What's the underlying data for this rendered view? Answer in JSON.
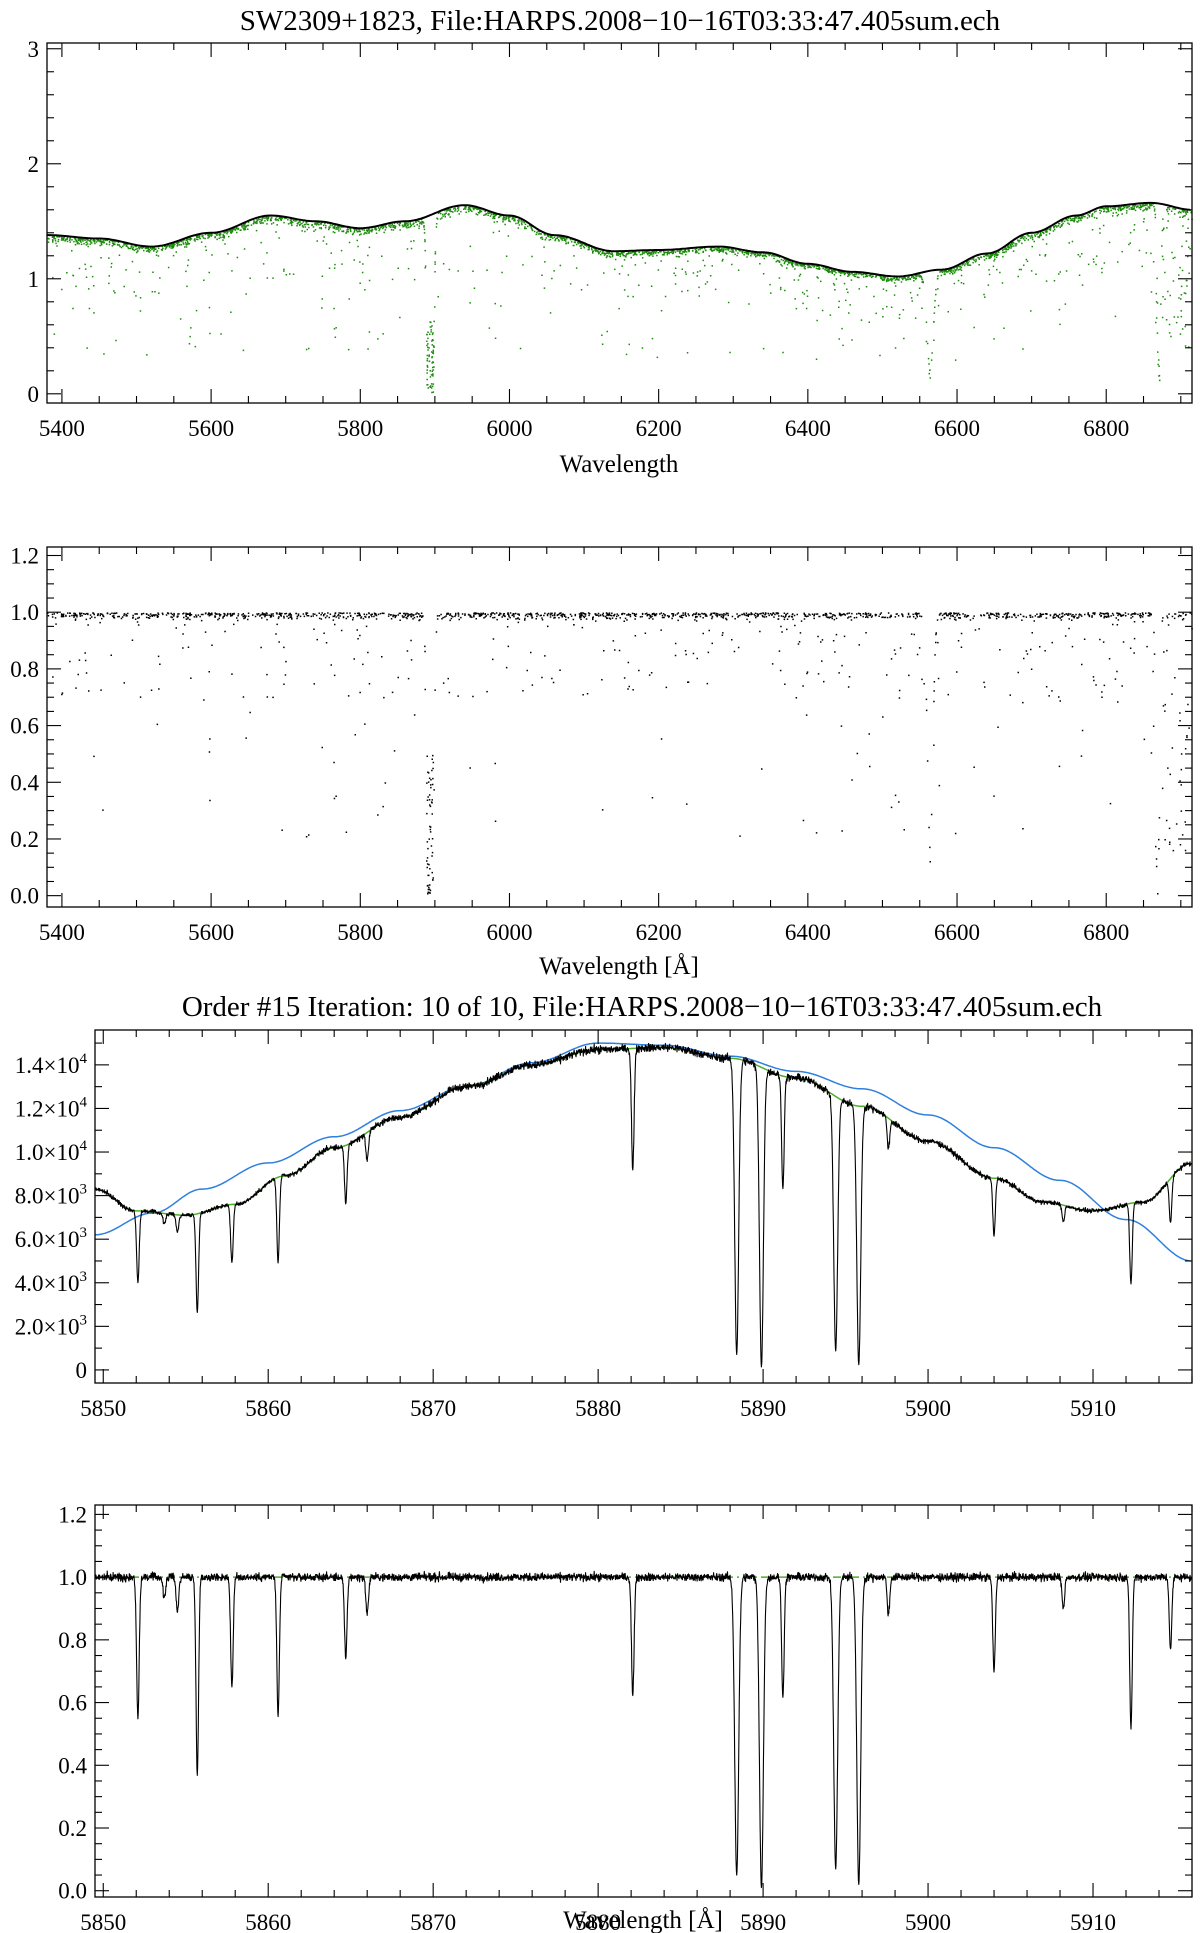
{
  "colors": {
    "background": "#ffffff",
    "axes": "#000000",
    "raw_spectrum": "#1a8c0a",
    "continuum_fit": "#000000",
    "normalized": "#000000",
    "blaze": "#2f7fe0",
    "model": "#4caf2a",
    "unity_line": "#4caf2a"
  },
  "chart_data": [
    {
      "type": "scatter",
      "title": "SW2309+1823, File:HARPS.2008−10−16T03:33:47.405sum.ech",
      "xlabel": "Wavelength",
      "ylabel": "",
      "xlim": [
        5380,
        6915
      ],
      "ylim": [
        -0.08,
        3.05
      ],
      "x_ticks": [
        5400,
        5600,
        5800,
        6000,
        6200,
        6400,
        6600,
        6800
      ],
      "x_tick_labels": [
        "5400",
        "5600",
        "5800",
        "6000",
        "6200",
        "6400",
        "6600",
        "6800"
      ],
      "y_ticks": [
        0,
        1,
        2,
        3
      ],
      "y_tick_labels": [
        "0",
        "1",
        "2",
        "3"
      ],
      "grid": false,
      "series": [
        {
          "color": "#1a8c0a",
          "style": "dots"
        },
        {
          "color": "#000000",
          "style": "line",
          "x": [
            5380,
            5450,
            5520,
            5600,
            5680,
            5740,
            5800,
            5860,
            5940,
            6000,
            6060,
            6140,
            6200,
            6280,
            6340,
            6400,
            6460,
            6520,
            6580,
            6640,
            6700,
            6760,
            6800,
            6860,
            6915
          ],
          "y": [
            1.38,
            1.35,
            1.28,
            1.4,
            1.55,
            1.5,
            1.44,
            1.5,
            1.64,
            1.55,
            1.38,
            1.24,
            1.25,
            1.28,
            1.23,
            1.13,
            1.06,
            1.02,
            1.08,
            1.22,
            1.4,
            1.55,
            1.63,
            1.66,
            1.6
          ]
        }
      ],
      "absorption_lines": [
        {
          "x": 5890,
          "depth": 0.95
        },
        {
          "x": 5896,
          "depth": 0.9
        },
        {
          "x": 6563,
          "depth": 0.8
        },
        {
          "x": 6870,
          "depth": 0.85
        }
      ]
    },
    {
      "type": "scatter",
      "title": "",
      "xlabel": "Wavelength [Å]",
      "ylabel": "",
      "xlim": [
        5380,
        6915
      ],
      "ylim": [
        -0.04,
        1.23
      ],
      "x_ticks": [
        5400,
        5600,
        5800,
        6000,
        6200,
        6400,
        6600,
        6800
      ],
      "x_tick_labels": [
        "5400",
        "5600",
        "5800",
        "6000",
        "6200",
        "6400",
        "6600",
        "6800"
      ],
      "y_ticks": [
        0.0,
        0.2,
        0.4,
        0.6,
        0.8,
        1.0,
        1.2
      ],
      "y_tick_labels": [
        "0.0",
        "0.2",
        "0.4",
        "0.6",
        "0.8",
        "1.0",
        "1.2"
      ],
      "grid": false,
      "series": [
        {
          "color": "#000000",
          "style": "dots",
          "continuum_level": 1.0
        }
      ],
      "absorption_lines": [
        {
          "x": 5890,
          "min": 0.02
        },
        {
          "x": 5896,
          "min": 0.05
        },
        {
          "x": 6563,
          "min": 0.17
        },
        {
          "x": 6868,
          "min": 0.02
        }
      ]
    },
    {
      "type": "line",
      "title": "Order #15 Iteration: 10 of 10, File:HARPS.2008−10−16T03:33:47.405sum.ech",
      "xlabel": "",
      "ylabel": "",
      "xlim": [
        5849.5,
        5916
      ],
      "ylim": [
        -600,
        15600
      ],
      "x_ticks": [
        5850,
        5860,
        5870,
        5880,
        5890,
        5900,
        5910
      ],
      "x_tick_labels": [
        "5850",
        "5860",
        "5870",
        "5880",
        "5890",
        "5900",
        "5910"
      ],
      "y_ticks": [
        0,
        2000,
        4000,
        6000,
        8000,
        10000,
        12000,
        14000
      ],
      "y_tick_labels": [
        {
          "mantissa": "0",
          "exp": ""
        },
        {
          "mantissa": "2.0×10",
          "exp": "3"
        },
        {
          "mantissa": "4.0×10",
          "exp": "3"
        },
        {
          "mantissa": "6.0×10",
          "exp": "3"
        },
        {
          "mantissa": "8.0×10",
          "exp": "3"
        },
        {
          "mantissa": "1.0×10",
          "exp": "4"
        },
        {
          "mantissa": "1.2×10",
          "exp": "4"
        },
        {
          "mantissa": "1.4×10",
          "exp": "4"
        }
      ],
      "grid": false,
      "series": [
        {
          "color": "#2f7fe0",
          "x": [
            5849.5,
            5853,
            5856,
            5860,
            5864,
            5868,
            5872,
            5876,
            5880,
            5884,
            5888,
            5892,
            5896,
            5900,
            5904,
            5908,
            5912,
            5916
          ],
          "y": [
            6200,
            7200,
            8300,
            9500,
            10700,
            11900,
            13000,
            14100,
            15000,
            14900,
            14400,
            13700,
            12900,
            11700,
            10200,
            8700,
            6900,
            5000
          ]
        },
        {
          "color": "#4caf2a",
          "x": [
            5849.5,
            5852,
            5855,
            5858,
            5861,
            5864,
            5868,
            5872,
            5876,
            5880,
            5884,
            5888,
            5892,
            5896,
            5900,
            5904,
            5907,
            5910,
            5913,
            5916
          ],
          "y": [
            8300,
            7300,
            7100,
            7600,
            8900,
            10200,
            11600,
            13000,
            14000,
            14700,
            14800,
            14300,
            13400,
            12100,
            10500,
            8800,
            7700,
            7300,
            7700,
            9500
          ]
        },
        {
          "color": "#000000",
          "style": "spectrum"
        }
      ],
      "absorption_lines": [
        {
          "x": 5852.1,
          "min_norm": 0.55
        },
        {
          "x": 5853.7,
          "min_norm": 0.93
        },
        {
          "x": 5854.5,
          "min_norm": 0.89
        },
        {
          "x": 5855.7,
          "min_norm": 0.37
        },
        {
          "x": 5857.8,
          "min_norm": 0.65
        },
        {
          "x": 5860.6,
          "min_norm": 0.56
        },
        {
          "x": 5864.7,
          "min_norm": 0.74
        },
        {
          "x": 5866.0,
          "min_norm": 0.88
        },
        {
          "x": 5882.1,
          "min_norm": 0.62
        },
        {
          "x": 5888.4,
          "min_norm": 0.05
        },
        {
          "x": 5889.9,
          "min_norm": 0.01
        },
        {
          "x": 5891.2,
          "min_norm": 0.62
        },
        {
          "x": 5894.4,
          "min_norm": 0.07
        },
        {
          "x": 5895.8,
          "min_norm": 0.02
        },
        {
          "x": 5897.6,
          "min_norm": 0.88
        },
        {
          "x": 5904.0,
          "min_norm": 0.7
        },
        {
          "x": 5908.2,
          "min_norm": 0.9
        },
        {
          "x": 5912.3,
          "min_norm": 0.52
        },
        {
          "x": 5914.7,
          "min_norm": 0.77
        }
      ]
    },
    {
      "type": "line",
      "title": "",
      "xlabel": "Wavelength [Å]",
      "ylabel": "",
      "xlim": [
        5849.5,
        5916
      ],
      "ylim": [
        -0.02,
        1.23
      ],
      "x_ticks": [
        5850,
        5860,
        5870,
        5880,
        5890,
        5900,
        5910
      ],
      "x_tick_labels": [
        "5850",
        "5860",
        "5870",
        "5880",
        "5890",
        "5900",
        "5910"
      ],
      "y_ticks": [
        0.0,
        0.2,
        0.4,
        0.6,
        0.8,
        1.0,
        1.2
      ],
      "y_tick_labels": [
        "0.0",
        "0.2",
        "0.4",
        "0.6",
        "0.8",
        "1.0",
        "1.2"
      ],
      "grid": false,
      "series": [
        {
          "color": "#4caf2a",
          "style": "dash-dot",
          "y_const": 1.0
        },
        {
          "color": "#000000",
          "style": "spectrum"
        }
      ]
    }
  ]
}
